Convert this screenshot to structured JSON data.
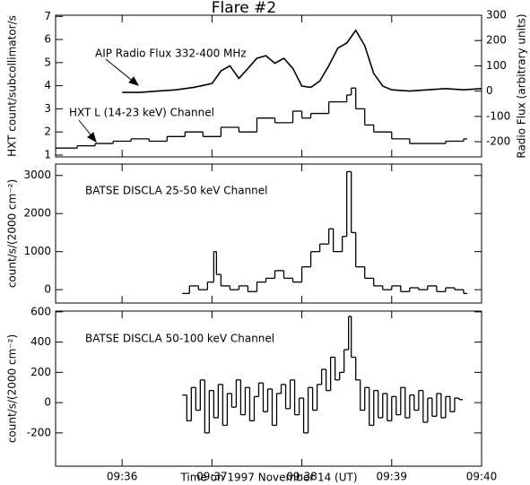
{
  "chart_data": [
    {
      "type": "line",
      "title": "Flare #2",
      "ylabel": "HXT count/subcollimator/s",
      "y2label": "Radio Flux (arbitrary units)",
      "xlim": [
        35.26,
        40.0
      ],
      "xticks": [
        36,
        37,
        38,
        39,
        40
      ],
      "ylim": [
        0.92,
        7.05
      ],
      "yticks": [
        1,
        2,
        3,
        4,
        5,
        6,
        7
      ],
      "y2lim": [
        -260,
        300
      ],
      "y2ticks": [
        -200,
        -100,
        0,
        100,
        200,
        300
      ],
      "annotations": [
        "AIP Radio Flux 332-400 MHz",
        "HXT L (14-23 keV) Channel"
      ],
      "series": [
        {
          "name": "HXT L (14-23 keV) Channel",
          "color": "#000000",
          "drawstyle": "steps",
          "x": [
            35.26,
            35.5,
            35.7,
            35.9,
            36.1,
            36.3,
            36.5,
            36.7,
            36.9,
            37.1,
            37.3,
            37.5,
            37.7,
            37.9,
            38.0,
            38.1,
            38.3,
            38.5,
            38.55,
            38.6,
            38.7,
            38.8,
            39.0,
            39.2,
            39.4,
            39.6,
            39.8
          ],
          "values": [
            1.3,
            1.4,
            1.5,
            1.6,
            1.7,
            1.6,
            1.8,
            2.0,
            1.8,
            2.2,
            2.0,
            2.6,
            2.4,
            2.9,
            2.6,
            2.8,
            3.3,
            3.6,
            3.9,
            3.0,
            2.3,
            2.0,
            1.7,
            1.5,
            1.5,
            1.6,
            1.7
          ]
        },
        {
          "name": "AIP Radio Flux 332-400 MHz",
          "color": "#000000",
          "drawstyle": "line",
          "axis": "y2",
          "x": [
            36.0,
            36.2,
            36.4,
            36.6,
            36.8,
            37.0,
            37.1,
            37.2,
            37.3,
            37.4,
            37.5,
            37.6,
            37.7,
            37.8,
            37.9,
            38.0,
            38.1,
            38.2,
            38.3,
            38.4,
            38.5,
            38.6,
            38.7,
            38.8,
            38.9,
            39.0,
            39.2,
            39.4,
            39.6,
            39.8,
            40.0
          ],
          "values": [
            -5,
            -5,
            0,
            5,
            15,
            30,
            80,
            100,
            50,
            90,
            130,
            140,
            110,
            130,
            90,
            20,
            15,
            40,
            100,
            170,
            190,
            240,
            180,
            70,
            20,
            5,
            0,
            5,
            10,
            5,
            10
          ]
        }
      ]
    },
    {
      "type": "line",
      "ylabel": "count/s/(2000 cm⁻²)",
      "xlim": [
        35.26,
        40.0
      ],
      "xticks": [
        36,
        37,
        38,
        39,
        40
      ],
      "ylim": [
        -350,
        3300
      ],
      "yticks": [
        0,
        1000,
        2000,
        3000
      ],
      "annotations": [
        "BATSE DISCLA 25-50 keV Channel"
      ],
      "series": [
        {
          "name": "BATSE DISCLA 25-50 keV Channel",
          "color": "#000000",
          "drawstyle": "steps",
          "x": [
            36.67,
            36.75,
            36.85,
            36.95,
            37.02,
            37.05,
            37.1,
            37.2,
            37.3,
            37.4,
            37.5,
            37.6,
            37.7,
            37.8,
            37.9,
            38.0,
            38.1,
            38.2,
            38.3,
            38.35,
            38.45,
            38.5,
            38.55,
            38.6,
            38.7,
            38.8,
            38.9,
            39.0,
            39.1,
            39.2,
            39.3,
            39.4,
            39.5,
            39.6,
            39.7,
            39.8
          ],
          "values": [
            -100,
            100,
            0,
            200,
            1000,
            400,
            100,
            0,
            100,
            -50,
            200,
            300,
            500,
            300,
            200,
            600,
            1000,
            1200,
            1600,
            1000,
            1400,
            3100,
            1500,
            600,
            300,
            100,
            0,
            100,
            -50,
            50,
            0,
            100,
            -50,
            50,
            0,
            -100
          ]
        }
      ]
    },
    {
      "type": "line",
      "ylabel": "count/s/(2000 cm⁻²)",
      "xlabel": "Time on 1997 November 14 (UT)",
      "xlim": [
        35.26,
        40.0
      ],
      "xticks": [
        {
          "value": 36,
          "label": "09:36"
        },
        {
          "value": 37,
          "label": "09:37"
        },
        {
          "value": 38,
          "label": "09:38"
        },
        {
          "value": 39,
          "label": "09:39"
        },
        {
          "value": 40,
          "label": "09:40"
        }
      ],
      "ylim": [
        -420,
        605
      ],
      "yticks": [
        -200,
        0,
        200,
        400,
        600
      ],
      "annotations": [
        "BATSE DISCLA 50-100 keV Channel"
      ],
      "series": [
        {
          "name": "BATSE DISCLA 50-100 keV Channel",
          "color": "#000000",
          "drawstyle": "steps",
          "x": [
            36.67,
            36.72,
            36.77,
            36.82,
            36.87,
            36.92,
            36.97,
            37.02,
            37.07,
            37.12,
            37.17,
            37.22,
            37.27,
            37.32,
            37.37,
            37.42,
            37.47,
            37.52,
            37.57,
            37.62,
            37.67,
            37.72,
            37.77,
            37.82,
            37.87,
            37.92,
            37.97,
            38.02,
            38.07,
            38.12,
            38.17,
            38.22,
            38.27,
            38.32,
            38.37,
            38.42,
            38.47,
            38.52,
            38.55,
            38.6,
            38.65,
            38.7,
            38.75,
            38.8,
            38.85,
            38.9,
            38.95,
            39.0,
            39.05,
            39.1,
            39.15,
            39.2,
            39.25,
            39.3,
            39.35,
            39.4,
            39.45,
            39.5,
            39.55,
            39.6,
            39.65,
            39.7,
            39.75
          ],
          "values": [
            50,
            -120,
            100,
            -50,
            150,
            -200,
            80,
            -100,
            120,
            -150,
            60,
            -30,
            150,
            -80,
            100,
            -120,
            40,
            130,
            -60,
            90,
            -150,
            60,
            120,
            -40,
            150,
            -80,
            30,
            -200,
            100,
            -50,
            120,
            220,
            80,
            300,
            150,
            200,
            350,
            570,
            300,
            150,
            -50,
            100,
            -150,
            80,
            -100,
            60,
            -120,
            40,
            -80,
            100,
            -100,
            50,
            -50,
            80,
            -130,
            30,
            -90,
            60,
            -100,
            40,
            -60,
            30,
            20
          ]
        }
      ]
    }
  ]
}
